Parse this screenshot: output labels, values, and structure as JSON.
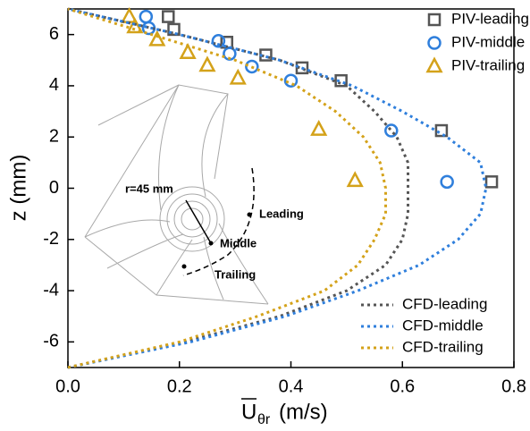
{
  "chart_data": {
    "type": "line",
    "ylabel": "z (mm)",
    "xlabel": "U",
    "xlabel_sub": "θr",
    "xlabel_unit": "(m/s)",
    "xlim": [
      0,
      0.8
    ],
    "ylim": [
      -7,
      7
    ],
    "xticks": [
      {
        "value": 0,
        "label": "0.0"
      },
      0.2,
      0.4,
      0.6,
      0.8
    ],
    "yticks": [
      -6,
      -4,
      -2,
      0,
      2,
      4,
      6
    ],
    "scatter_legend": "upper right",
    "line_legend": "lower right",
    "series": [
      {
        "name": "PIV-leading",
        "type": "scatter",
        "marker": "square",
        "color": "#555555",
        "x": [
          0.18,
          0.19,
          0.285,
          0.355,
          0.42,
          0.49,
          0.67,
          0.76
        ],
        "values": [
          6.7,
          6.2,
          5.7,
          5.2,
          4.7,
          4.2,
          2.25,
          0.25
        ]
      },
      {
        "name": "PIV-middle",
        "type": "scatter",
        "marker": "circle",
        "color": "#2f7fdc",
        "x": [
          0.14,
          0.145,
          0.27,
          0.29,
          0.33,
          0.4,
          0.58,
          0.68
        ],
        "values": [
          6.7,
          6.25,
          5.75,
          5.25,
          4.75,
          4.2,
          2.25,
          0.25
        ]
      },
      {
        "name": "PIV-trailing",
        "type": "scatter",
        "marker": "triangle",
        "color": "#d4a21a",
        "x": [
          0.11,
          0.12,
          0.16,
          0.215,
          0.25,
          0.305,
          0.45,
          0.515
        ],
        "values": [
          6.7,
          6.3,
          5.8,
          5.3,
          4.8,
          4.3,
          2.3,
          0.3
        ]
      },
      {
        "name": "CFD-leading",
        "type": "line",
        "color": "#555555",
        "x": [
          0,
          0.21,
          0.38,
          0.5,
          0.57,
          0.6,
          0.61,
          0.61,
          0.61,
          0.59,
          0.55,
          0.5,
          0.38,
          0.2,
          0
        ],
        "values": [
          -7,
          -6,
          -5,
          -4,
          -3,
          -2,
          -1,
          0,
          1,
          2,
          3,
          4,
          5,
          6,
          7
        ]
      },
      {
        "name": "CFD-middle",
        "type": "line",
        "color": "#2f7fdc",
        "x": [
          0,
          0.22,
          0.39,
          0.52,
          0.63,
          0.7,
          0.74,
          0.75,
          0.74,
          0.68,
          0.6,
          0.51,
          0.38,
          0.2,
          0
        ],
        "values": [
          -7,
          -6,
          -5,
          -4,
          -3,
          -2,
          -1,
          0,
          1,
          2,
          3,
          4,
          5,
          6,
          7
        ]
      },
      {
        "name": "CFD-trailing",
        "type": "line",
        "color": "#d4a21a",
        "x": [
          0,
          0.2,
          0.34,
          0.46,
          0.52,
          0.55,
          0.57,
          0.57,
          0.56,
          0.53,
          0.48,
          0.41,
          0.3,
          0.15,
          0
        ],
        "values": [
          -7,
          -6,
          -5,
          -4,
          -3,
          -2,
          -1,
          0,
          1,
          2,
          3,
          4,
          5,
          6,
          7
        ]
      }
    ],
    "annotations": [
      "r=45 mm",
      "Leading",
      "Middle",
      "Trailing"
    ]
  }
}
